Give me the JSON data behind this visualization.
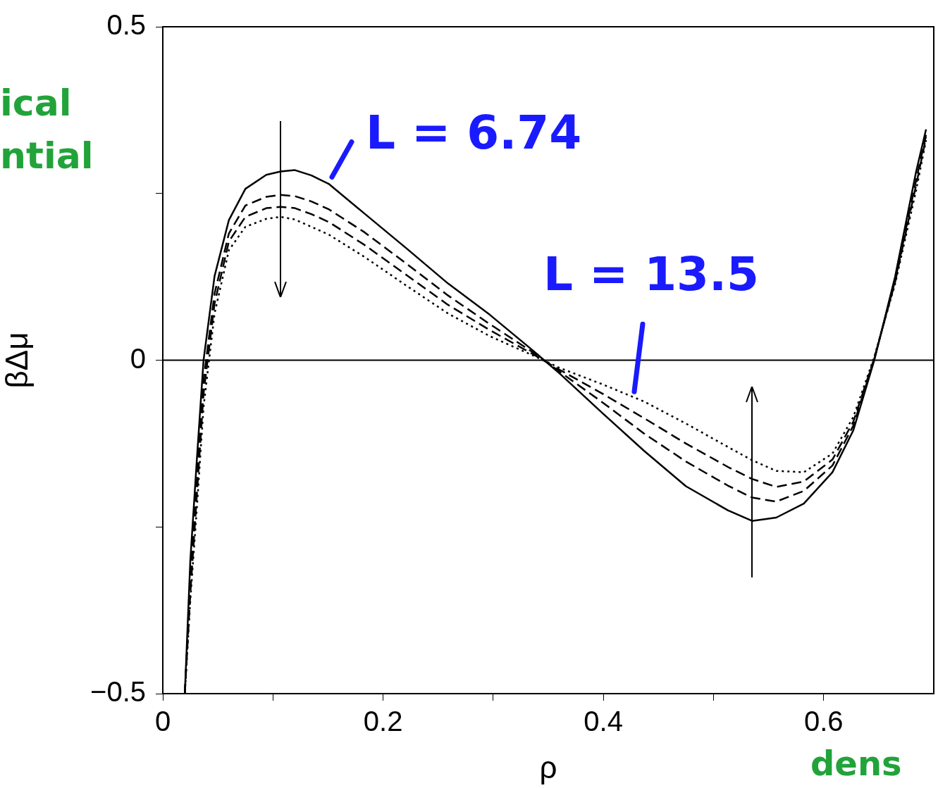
{
  "chart_data": {
    "type": "line",
    "xlabel": "ρ",
    "ylabel": "βΔμ",
    "xlim": [
      0,
      0.7
    ],
    "ylim": [
      -0.5,
      0.5
    ],
    "xticks": [
      0,
      {
        "value": 0.1,
        "label": null
      },
      0.2,
      {
        "value": 0.3,
        "label": null
      },
      0.4,
      {
        "value": 0.5,
        "label": null
      },
      0.6
    ],
    "yticks": [
      -0.5,
      {
        "value": -0.25,
        "label": null
      },
      0,
      {
        "value": 0.25,
        "label": null
      },
      0.5
    ],
    "grid": false,
    "legend": false,
    "marker": "none",
    "x": [
      0.02,
      0.025,
      0.031,
      0.037,
      0.047,
      0.06,
      0.075,
      0.094,
      0.107,
      0.12,
      0.135,
      0.151,
      0.183,
      0.221,
      0.259,
      0.297,
      0.335,
      0.361,
      0.399,
      0.437,
      0.475,
      0.513,
      0.535,
      0.557,
      0.582,
      0.608,
      0.627,
      0.646,
      0.665,
      0.684,
      0.693
    ],
    "series": [
      {
        "name": "L = 6.74",
        "color": "#000000",
        "line_style": "solid",
        "values": [
          -0.5,
          -0.3,
          -0.147,
          0,
          0.126,
          0.21,
          0.257,
          0.278,
          0.283,
          0.285,
          0.277,
          0.264,
          0.22,
          0.168,
          0.115,
          0.068,
          0.016,
          -0.021,
          -0.079,
          -0.136,
          -0.189,
          -0.225,
          -0.241,
          -0.236,
          -0.215,
          -0.168,
          -0.105,
          0,
          0.126,
          0.283,
          0.346
        ]
      },
      {
        "color": "#000000",
        "line_style": "dashed",
        "values": [
          -0.5,
          -0.33,
          -0.18,
          -0.03,
          0.1,
          0.19,
          0.232,
          0.245,
          0.248,
          0.246,
          0.238,
          0.226,
          0.192,
          0.145,
          0.097,
          0.054,
          0.013,
          -0.018,
          -0.063,
          -0.11,
          -0.152,
          -0.188,
          -0.206,
          -0.212,
          -0.196,
          -0.158,
          -0.098,
          0.002,
          0.12,
          0.27,
          0.338
        ]
      },
      {
        "color": "#000000",
        "line_style": "dashed",
        "values": [
          -0.5,
          -0.35,
          -0.2,
          -0.05,
          0.085,
          0.178,
          0.215,
          0.228,
          0.23,
          0.228,
          0.219,
          0.207,
          0.173,
          0.128,
          0.083,
          0.045,
          0.01,
          -0.015,
          -0.05,
          -0.087,
          -0.125,
          -0.16,
          -0.178,
          -0.19,
          -0.182,
          -0.149,
          -0.092,
          0.003,
          0.118,
          0.263,
          0.334
        ]
      },
      {
        "name": "L = 13.5",
        "color": "#000000",
        "line_style": "dotted",
        "values": [
          -0.5,
          -0.36,
          -0.22,
          -0.07,
          0.07,
          0.165,
          0.2,
          0.212,
          0.215,
          0.211,
          0.2,
          0.188,
          0.155,
          0.112,
          0.07,
          0.036,
          0.008,
          -0.012,
          -0.036,
          -0.062,
          -0.095,
          -0.13,
          -0.15,
          -0.166,
          -0.168,
          -0.14,
          -0.085,
          0.005,
          0.115,
          0.255,
          0.33
        ]
      }
    ],
    "ref_lines": [
      {
        "axis": "y",
        "value": 0,
        "color": "#000000"
      }
    ],
    "annotations": [
      "ical",
      "ntial",
      "dens"
    ]
  }
}
